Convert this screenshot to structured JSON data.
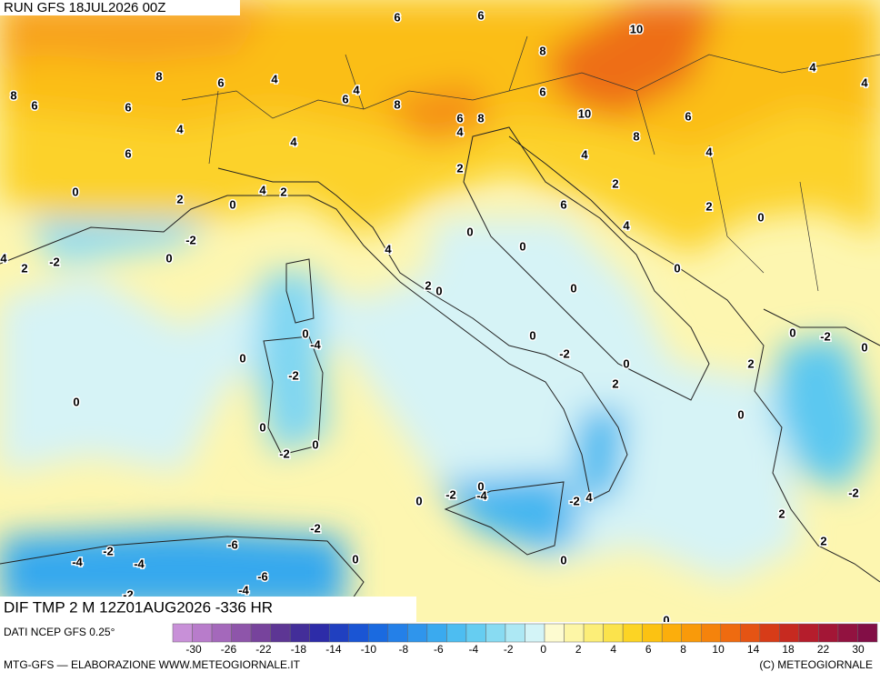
{
  "header": {
    "run": "RUN GFS 18JUL2026 00Z",
    "field": "DIF TMP 2 M 12Z01AUG2026 -336 HR",
    "source": "DATI NCEP GFS 0.25°"
  },
  "footer": {
    "credit": "MTG-GFS — ELABORAZIONE WWW.METEOGIORNALE.IT",
    "copyright": "(C) METEOGIORNALE"
  },
  "colorbar": {
    "colors": [
      "#c890d8",
      "#b87ccb",
      "#a468bb",
      "#8e55aa",
      "#77439c",
      "#5d3694",
      "#432e99",
      "#2d2ca8",
      "#2040c0",
      "#1a55d4",
      "#1a6ae0",
      "#2480e8",
      "#2f95ec",
      "#3aaaef",
      "#4dbdf1",
      "#66cdf1",
      "#88dbf2",
      "#ade8f4",
      "#d3f4f7",
      "#fdfbd0",
      "#fdf6a6",
      "#fcee78",
      "#fbe34c",
      "#fcd424",
      "#fcc212",
      "#fcae0c",
      "#f99a0a",
      "#f5830c",
      "#ef6b10",
      "#e55414",
      "#d73c18",
      "#c72a20",
      "#b51d2c",
      "#a31636",
      "#921240",
      "#820e46"
    ],
    "labels": [
      "-30",
      "-26",
      "-22",
      "-18",
      "-14",
      "-10",
      "-8",
      "-6",
      "-4",
      "-2",
      "0",
      "2",
      "4",
      "6",
      "8",
      "10",
      "14",
      "18",
      "22",
      "30"
    ]
  },
  "map_labels": [
    "6",
    "6",
    "10",
    "8",
    "8",
    "6",
    "8",
    "6",
    "4",
    "6",
    "4",
    "8",
    "6",
    "10",
    "4",
    "4",
    "6",
    "4",
    "6",
    "4",
    "6",
    "8",
    "4",
    "6",
    "8",
    "4",
    "4",
    "2",
    "0",
    "2",
    "0",
    "4",
    "2",
    "2",
    "6",
    "2",
    "0",
    "4",
    "-2",
    "0",
    "0",
    "-2",
    "0",
    "4",
    "0",
    "4",
    "2",
    "2",
    "0",
    "0",
    "0",
    "-4",
    "0",
    "0",
    "-2",
    "0",
    "-2",
    "0",
    "0",
    "-2",
    "2",
    "2",
    "0",
    "0",
    "0",
    "0",
    "-2",
    "-2",
    "-4",
    "0",
    "0",
    "-2",
    "4",
    "-2",
    "2",
    "-2",
    "-6",
    "-2",
    "-4",
    "-4",
    "0",
    "0",
    "2",
    "-6",
    "-2",
    "-4",
    "0"
  ]
}
